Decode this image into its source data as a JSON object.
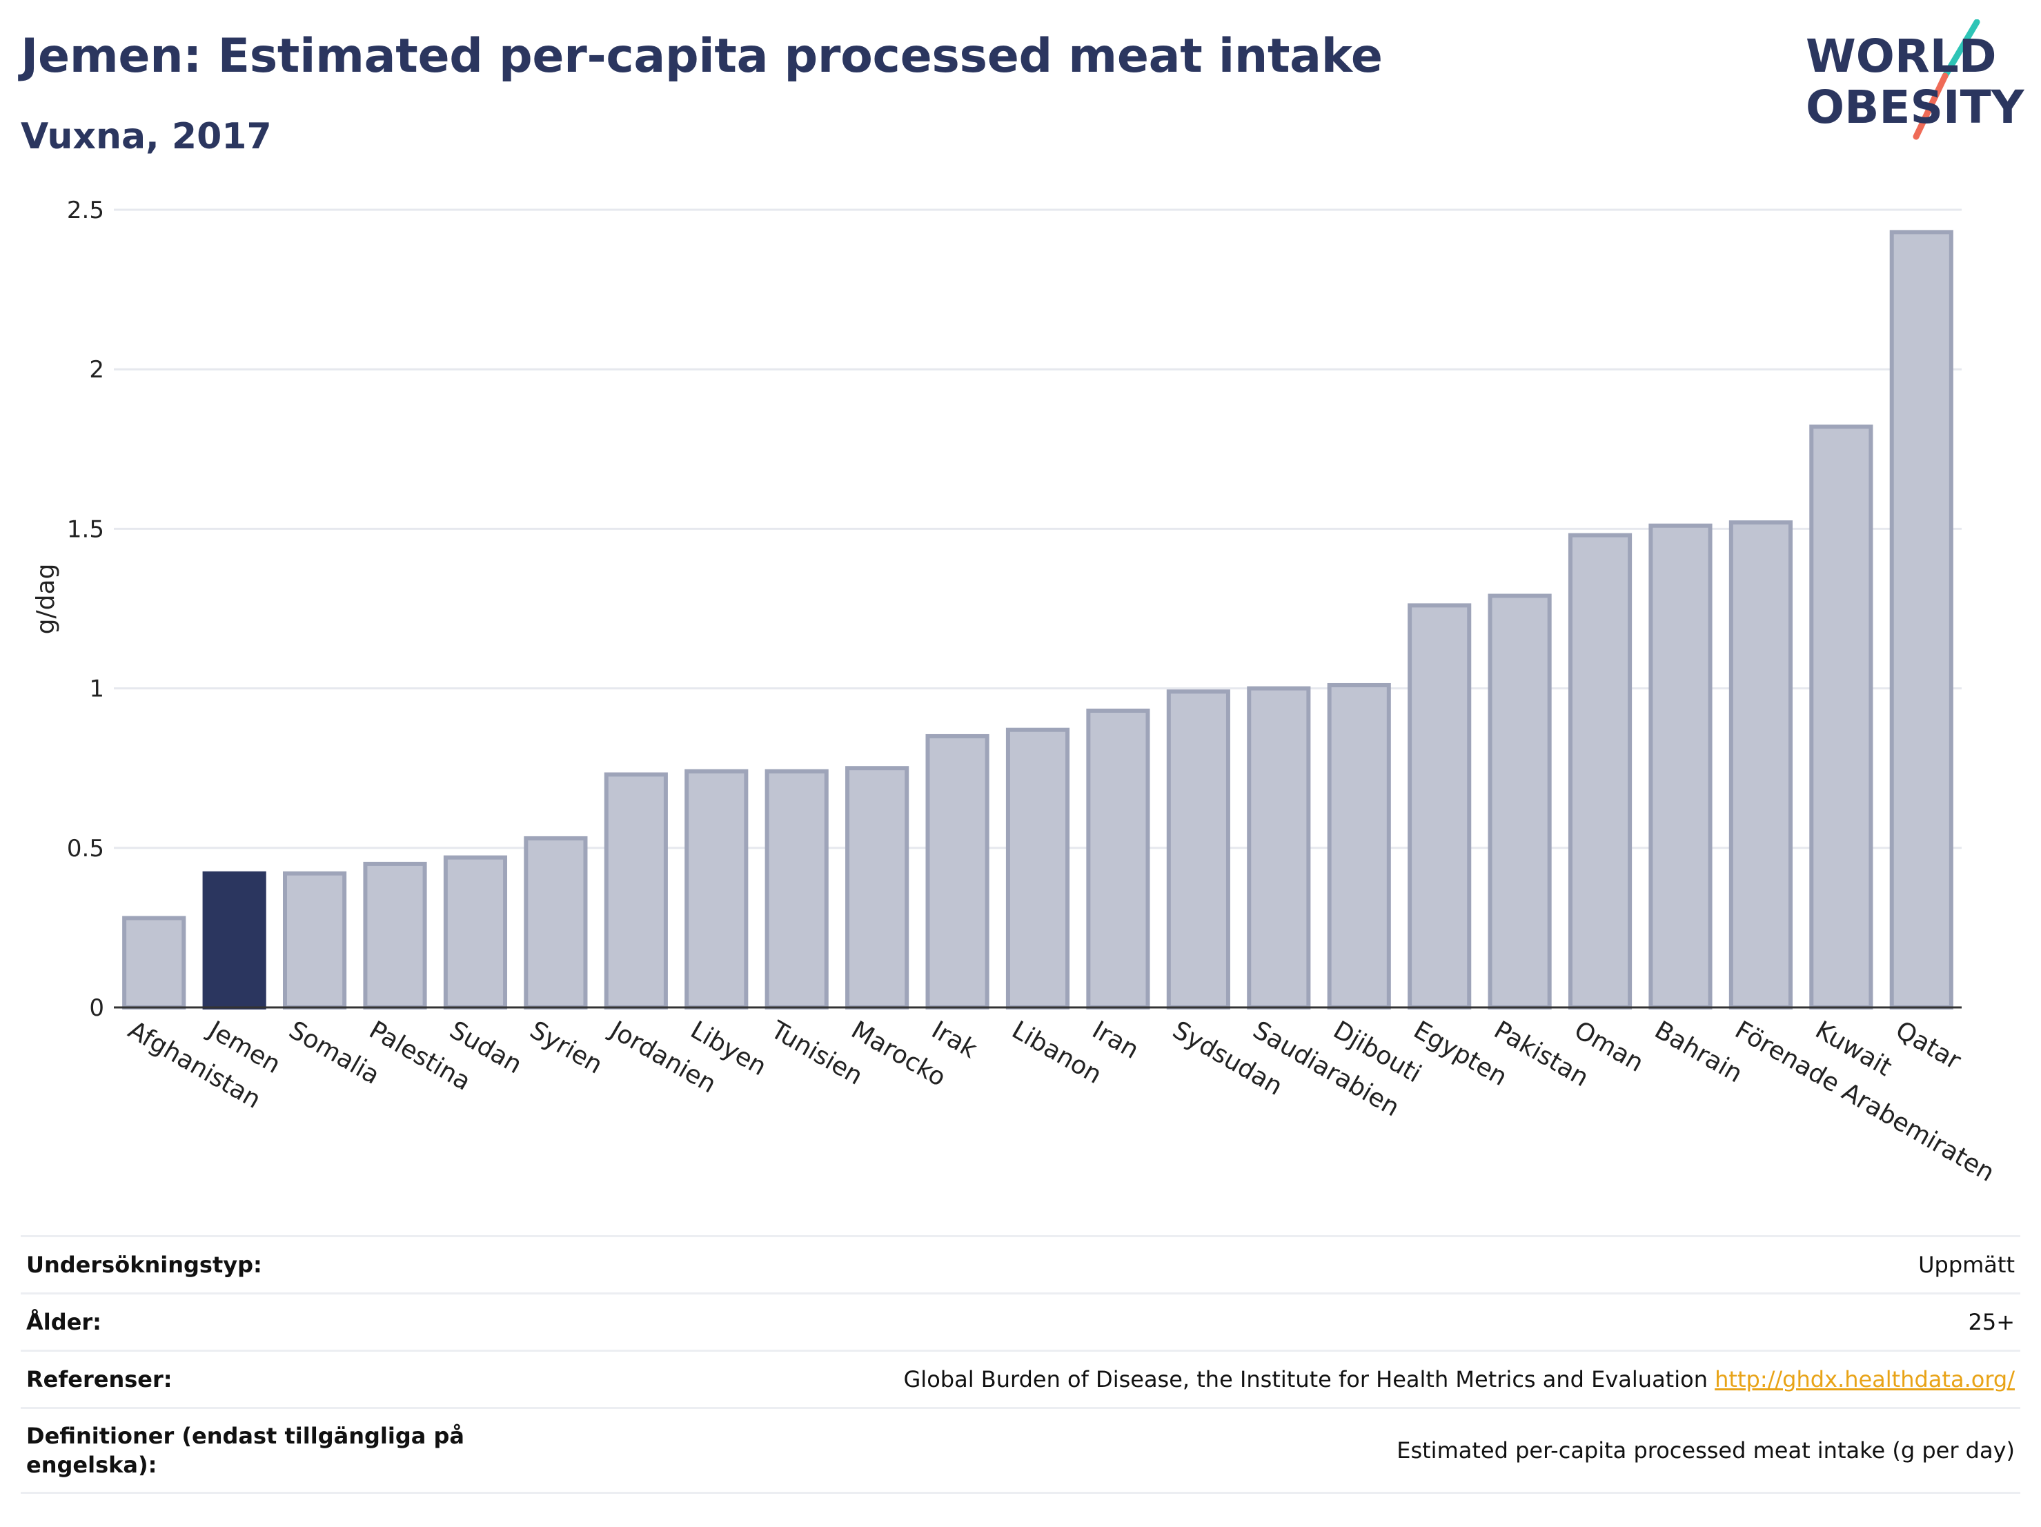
{
  "header": {
    "title": "Jemen: Estimated per-capita processed meat intake",
    "subtitle": "Vuxna, 2017"
  },
  "logo": {
    "line1": "WORLD",
    "line2": "OBESITY",
    "colors": {
      "text": "#2b365f",
      "slash_top": "#2ec4b6",
      "slash_bottom": "#ef6b57"
    }
  },
  "chart_data": {
    "type": "bar",
    "title": "Jemen: Estimated per-capita processed meat intake",
    "subtitle": "Vuxna, 2017",
    "xlabel": "",
    "ylabel": "g/dag",
    "ylim": [
      0,
      2.5
    ],
    "yticks": [
      0,
      0.5,
      1,
      1.5,
      2,
      2.5
    ],
    "ytick_labels": [
      "0",
      "0.5",
      "1",
      "1.5",
      "2",
      "2.5"
    ],
    "grid": true,
    "highlight": "Jemen",
    "colors": {
      "bar": "#c0c4d2",
      "bar_edge": "#9ea4b9",
      "highlight": "#2b365f",
      "axis": "#333333",
      "grid": "#e6e8ee"
    },
    "categories": [
      "Afghanistan",
      "Jemen",
      "Somalia",
      "Palestina",
      "Sudan",
      "Syrien",
      "Jordanien",
      "Libyen",
      "Tunisien",
      "Marocko",
      "Irak",
      "Libanon",
      "Iran",
      "Sydsudan",
      "Saudiarabien",
      "Djibouti",
      "Egypten",
      "Pakistan",
      "Oman",
      "Bahrain",
      "Förenade Arabemiraten",
      "Kuwait",
      "Qatar"
    ],
    "values": [
      0.28,
      0.42,
      0.42,
      0.45,
      0.47,
      0.53,
      0.73,
      0.74,
      0.74,
      0.75,
      0.85,
      0.87,
      0.93,
      0.99,
      1.0,
      1.01,
      1.26,
      1.29,
      1.48,
      1.51,
      1.52,
      1.82,
      2.43
    ]
  },
  "info": {
    "rows": [
      {
        "label": "Undersökningstyp:",
        "value": "Uppmätt"
      },
      {
        "label": "Ålder:",
        "value": "25+"
      },
      {
        "label": "Referenser:",
        "value": "Global Burden of Disease, the Institute for Health Metrics and Evaluation",
        "link": "http://ghdx.healthdata.org/"
      },
      {
        "label": "Definitioner (endast tillgängliga på engelska):",
        "value": "Estimated per-capita processed meat intake (g per day)"
      }
    ]
  }
}
